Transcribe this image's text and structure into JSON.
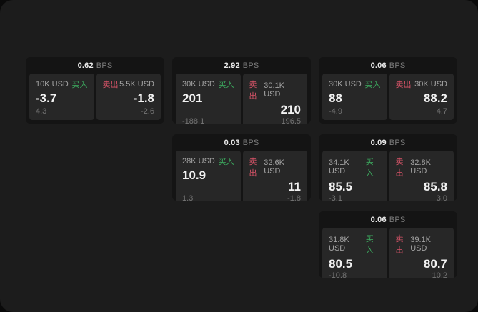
{
  "labels": {
    "bps_suffix": "BPS",
    "buy": "买入",
    "sell": "卖出"
  },
  "colors": {
    "outer_background": "#0a0a0a",
    "panel_background": "#1c1c1c",
    "card_background": "#141414",
    "tile_background": "#272727",
    "buy_green": "#3db061",
    "sell_red": "#d85468",
    "price_text": "#f2f2f2",
    "amount_text": "#a3a3a3",
    "delta_text": "#757575"
  },
  "cards": [
    {
      "bps_value": "0.62",
      "buy": {
        "amount": "10K USD",
        "price": "-3.7",
        "delta": "4.3"
      },
      "sell": {
        "amount": "5.5K USD",
        "price": "-1.8",
        "delta": "-2.6"
      }
    },
    {
      "bps_value": "2.92",
      "buy": {
        "amount": "30K USD",
        "price": "201",
        "delta": "-188.1"
      },
      "sell": {
        "amount": "30.1K USD",
        "price": "210",
        "delta": "196.5"
      }
    },
    {
      "bps_value": "0.06",
      "buy": {
        "amount": "30K USD",
        "price": "88",
        "delta": "-4.9"
      },
      "sell": {
        "amount": "30K USD",
        "price": "88.2",
        "delta": "4.7"
      }
    },
    {
      "bps_value": "0.03",
      "buy": {
        "amount": "28K USD",
        "price": "10.9",
        "delta": "1.3"
      },
      "sell": {
        "amount": "32.6K USD",
        "price": "11",
        "delta": "-1.8"
      }
    },
    {
      "bps_value": "0.09",
      "buy": {
        "amount": "34.1K USD",
        "price": "85.5",
        "delta": "-3.1"
      },
      "sell": {
        "amount": "32.8K USD",
        "price": "85.8",
        "delta": "3.0"
      }
    },
    {
      "bps_value": "0.06",
      "buy": {
        "amount": "31.8K USD",
        "price": "80.5",
        "delta": "-10.8"
      },
      "sell": {
        "amount": "39.1K USD",
        "price": "80.7",
        "delta": "10.2"
      }
    }
  ]
}
